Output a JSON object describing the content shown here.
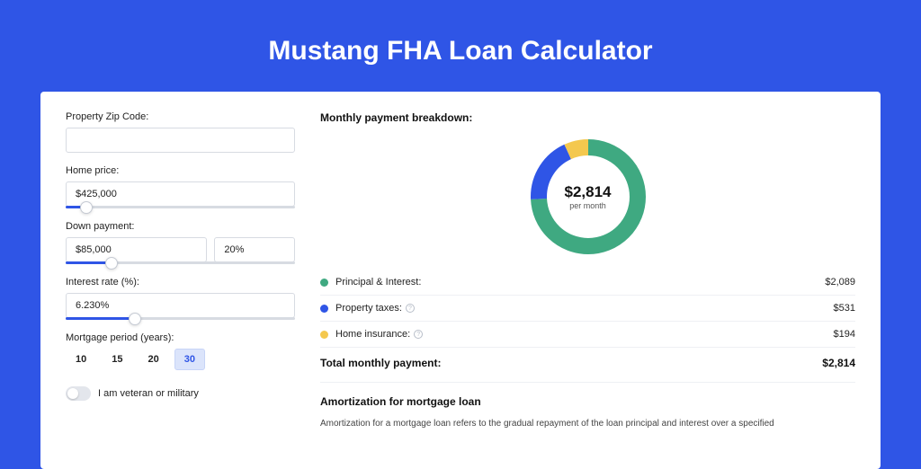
{
  "page": {
    "background_color": "#2f55e6",
    "title": "Mustang FHA Loan Calculator"
  },
  "form": {
    "zip": {
      "label": "Property Zip Code:",
      "value": ""
    },
    "price": {
      "label": "Home price:",
      "value": "$425,000",
      "slider_percent": 9
    },
    "down": {
      "label": "Down payment:",
      "value": "$85,000",
      "pct": "20%",
      "slider_percent": 20
    },
    "rate": {
      "label": "Interest rate (%):",
      "value": "6.230%",
      "slider_percent": 30
    },
    "period": {
      "label": "Mortgage period (years):",
      "options": [
        "10",
        "15",
        "20",
        "30"
      ],
      "selected": 3
    },
    "veteran": {
      "label": "I am veteran or military",
      "on": false
    }
  },
  "breakdown": {
    "title": "Monthly payment breakdown:",
    "center_value": "$2,814",
    "center_sub": "per month",
    "donut": {
      "ring_width": 18,
      "radius": 55,
      "segments": [
        {
          "key": "pi",
          "label": "Principal & Interest:",
          "value": "$2,089",
          "frac": 0.742,
          "color": "#3fa981",
          "has_info": false
        },
        {
          "key": "tax",
          "label": "Property taxes:",
          "value": "$531",
          "frac": 0.189,
          "color": "#2f55e6",
          "has_info": true
        },
        {
          "key": "ins",
          "label": "Home insurance:",
          "value": "$194",
          "frac": 0.069,
          "color": "#f4c84e",
          "has_info": true
        }
      ]
    },
    "total": {
      "label": "Total monthly payment:",
      "value": "$2,814"
    }
  },
  "amort": {
    "title": "Amortization for mortgage loan",
    "text": "Amortization for a mortgage loan refers to the gradual repayment of the loan principal and interest over a specified"
  }
}
